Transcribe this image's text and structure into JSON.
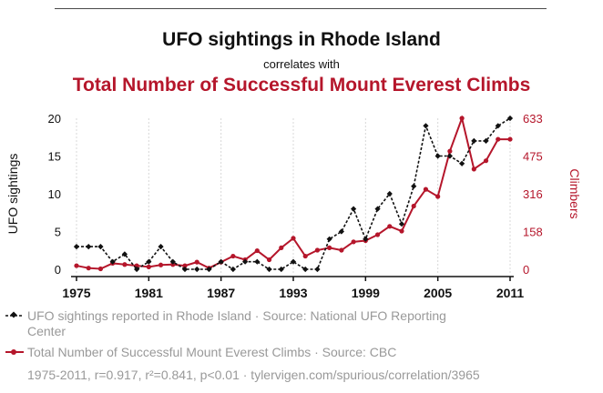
{
  "header": {
    "title": "UFO sightings in Rhode Island",
    "subtitle": "correlates with",
    "title2": "Total Number of Successful Mount Everest Climbs"
  },
  "legend": {
    "series1": "UFO sightings reported in Rhode Island · Source: National UFO Reporting Center",
    "series1_line1": "UFO sightings reported in Rhode Island · Source: National UFO Reporting",
    "series1_line2": "Center",
    "series2": "Total Number of Successful Mount Everest Climbs · Source: CBC",
    "stats": "1975-2011, r=0.917, r²=0.841, p<0.01 · tylervigen.com/spurious/correlation/3965"
  },
  "colors": {
    "series1": "#111111",
    "series2": "#b5162b",
    "legend_text": "#999999"
  },
  "chart_data": {
    "type": "line",
    "x": [
      1975,
      1976,
      1977,
      1978,
      1979,
      1980,
      1981,
      1982,
      1983,
      1984,
      1985,
      1986,
      1987,
      1988,
      1989,
      1990,
      1991,
      1992,
      1993,
      1994,
      1995,
      1996,
      1997,
      1998,
      1999,
      2000,
      2001,
      2002,
      2003,
      2004,
      2005,
      2006,
      2007,
      2008,
      2009,
      2010,
      2011
    ],
    "xlim": [
      1975,
      2011
    ],
    "xticks": [
      "1975",
      "1981",
      "1987",
      "1993",
      "1999",
      "2005",
      "2011"
    ],
    "xtick_values": [
      1975,
      1981,
      1987,
      1993,
      1999,
      2005,
      2011
    ],
    "y_left": {
      "label": "UFO sightings",
      "lim": [
        0,
        20
      ],
      "ticks": [
        "0",
        "5",
        "10",
        "15",
        "20"
      ],
      "tick_values": [
        0,
        5,
        10,
        15,
        20
      ]
    },
    "y_right": {
      "label": "Climbers",
      "lim": [
        0,
        633
      ],
      "ticks": [
        "0",
        "158",
        "316",
        "475",
        "633"
      ],
      "tick_values": [
        0,
        158,
        316,
        475,
        633
      ]
    },
    "series": [
      {
        "name": "UFO sightings reported in Rhode Island",
        "axis": "left",
        "style": "dashed-diamond",
        "values": [
          3,
          3,
          3,
          1,
          2,
          0,
          1,
          3,
          1,
          0,
          0,
          0,
          1,
          0,
          1,
          1,
          0,
          0,
          1,
          0,
          0,
          4,
          5,
          8,
          4,
          8,
          10,
          6,
          11,
          19,
          15,
          15,
          14,
          17,
          17,
          19,
          20
        ]
      },
      {
        "name": "Total Number of Successful Mount Everest Climbs",
        "axis": "right",
        "style": "solid-circle",
        "values": [
          15,
          5,
          2,
          25,
          20,
          15,
          10,
          18,
          20,
          15,
          30,
          5,
          30,
          55,
          40,
          78,
          40,
          90,
          130,
          55,
          80,
          90,
          80,
          115,
          120,
          145,
          180,
          160,
          265,
          335,
          305,
          495,
          633,
          420,
          455,
          545,
          545
        ]
      }
    ]
  }
}
